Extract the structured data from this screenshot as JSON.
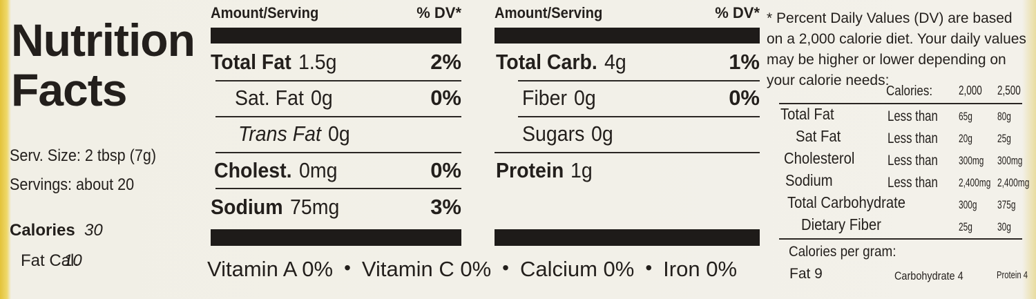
{
  "title": "Nutrition Facts",
  "serving_size": "Serv. Size: 2 tbsp (7g)",
  "servings": "Servings: about 20",
  "calories": {
    "label": "Calories",
    "value": "30"
  },
  "fat_calories": {
    "label": "Fat Cal.",
    "value": "10"
  },
  "left_table": {
    "header": {
      "amount": "Amount/Serving",
      "dv": "% DV*"
    },
    "rows": [
      {
        "name": "Total Fat",
        "amount": "1.5g",
        "dv": "2%"
      },
      {
        "name": "Sat. Fat",
        "amount": "0g",
        "dv": "0%"
      },
      {
        "name": "Trans Fat",
        "amount": "0g"
      },
      {
        "name": "Cholest.",
        "amount": "0mg",
        "dv": "0%"
      },
      {
        "name": "Sodium",
        "amount": "75mg",
        "dv": "3%"
      }
    ]
  },
  "right_table": {
    "header": {
      "amount": "Amount/Serving",
      "dv": "% DV*"
    },
    "rows": [
      {
        "name": "Total Carb.",
        "amount": "4g",
        "dv": "1%"
      },
      {
        "name": "Fiber",
        "amount": "0g",
        "dv": "0%"
      },
      {
        "name": "Sugars",
        "amount": "0g"
      },
      {
        "name": "Protein",
        "amount": "1g"
      }
    ]
  },
  "vitamins": [
    "Vitamin A 0%",
    "Vitamin C 0%",
    "Calcium 0%",
    "Iron 0%"
  ],
  "separator": "•",
  "footnote": {
    "text": "* Percent Daily Values (DV) are based on a 2,000 calorie diet. Your daily values may be higher or lower depending on your calorie needs:",
    "header": {
      "label": "Calories:",
      "col1": "2,000",
      "col2": "2,500"
    },
    "rows": [
      {
        "name": "Total Fat",
        "limit": "Less than",
        "col1": "65g",
        "col2": "80g"
      },
      {
        "name": "Sat Fat",
        "limit": "Less than",
        "col1": "20g",
        "col2": "25g"
      },
      {
        "name": "Cholesterol",
        "limit": "Less than",
        "col1": "300mg",
        "col2": "300mg"
      },
      {
        "name": "Sodium",
        "limit": "Less than",
        "col1": "2,400mg",
        "col2": "2,400mg"
      },
      {
        "name": "Total Carbohydrate",
        "col1": "300g",
        "col2": "375g"
      },
      {
        "name": "Dietary Fiber",
        "col1": "25g",
        "col2": "30g"
      }
    ],
    "per_gram": {
      "title": "Calories per gram:",
      "fat": "Fat 9",
      "carbohydrate": "Carbohydrate 4",
      "protein": "Protein 4"
    }
  }
}
